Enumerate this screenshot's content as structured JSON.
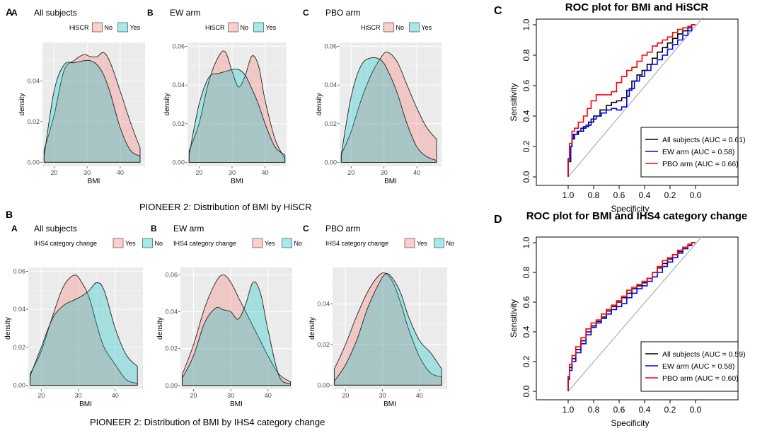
{
  "figure": {
    "section_labels": {
      "a": "A",
      "b": "B"
    },
    "captions": {
      "top": "PIONEER 2: Distribution of BMI by HiSCR",
      "bottom": "PIONEER 2: Distribution of BMI by IHS4 category change"
    }
  },
  "colors": {
    "pink": "#f8766d",
    "teal": "#00bfc4",
    "panel_bg": "#ebebeb",
    "roc_black": "#000000",
    "roc_blue": "#0000ff",
    "roc_red": "#ff0000",
    "diag": "#a0a0a0"
  },
  "chart_data": [
    {
      "id": "A-A",
      "type": "area",
      "panel_letter": "A",
      "title": "All subjects",
      "legend_title": "HiSCR",
      "legend": [
        "No",
        "Yes"
      ],
      "xlabel": "BMI",
      "ylabel": "density",
      "xlim": [
        16.5,
        47.5
      ],
      "ylim": [
        -0.002,
        0.059
      ],
      "xticks": [
        20,
        30,
        40
      ],
      "yticks": [
        0.0,
        0.02,
        0.04
      ],
      "ytick_labels": [
        "0.00",
        "0.02",
        "0.04"
      ],
      "x": [
        17,
        20,
        23,
        26,
        29,
        31,
        33,
        35,
        37,
        40,
        43,
        46
      ],
      "series": [
        {
          "name": "No",
          "values": [
            0.006,
            0.023,
            0.045,
            0.05,
            0.053,
            0.052,
            0.052,
            0.054,
            0.049,
            0.035,
            0.02,
            0.007
          ]
        },
        {
          "name": "Yes",
          "values": [
            0.003,
            0.035,
            0.048,
            0.049,
            0.05,
            0.05,
            0.048,
            0.043,
            0.034,
            0.017,
            0.006,
            0.003
          ]
        }
      ]
    },
    {
      "id": "A-B",
      "type": "area",
      "panel_letter": "B",
      "title": "EW arm",
      "legend_title": "HiSCR",
      "legend": [
        "No",
        "Yes"
      ],
      "xlabel": "BMI",
      "ylabel": "density",
      "xlim": [
        16.5,
        46.5
      ],
      "ylim": [
        -0.002,
        0.062
      ],
      "xticks": [
        20,
        30,
        40
      ],
      "yticks": [
        0.0,
        0.02,
        0.04,
        0.06
      ],
      "ytick_labels": [
        "0.00",
        "0.02",
        "0.04",
        "0.06"
      ],
      "x": [
        17,
        20,
        23,
        26,
        28,
        30,
        32,
        34,
        36,
        38,
        40,
        43,
        46
      ],
      "series": [
        {
          "name": "No",
          "values": [
            0.006,
            0.02,
            0.042,
            0.055,
            0.057,
            0.047,
            0.039,
            0.045,
            0.055,
            0.05,
            0.032,
            0.012,
            0.002
          ]
        },
        {
          "name": "Yes",
          "values": [
            0.004,
            0.03,
            0.044,
            0.046,
            0.047,
            0.048,
            0.048,
            0.045,
            0.038,
            0.03,
            0.02,
            0.008,
            0.004
          ]
        }
      ]
    },
    {
      "id": "A-C",
      "type": "area",
      "panel_letter": "C",
      "title": "PBO arm",
      "legend_title": "HiSCR",
      "legend": [
        "No",
        "Yes"
      ],
      "xlabel": "BMI",
      "ylabel": "density",
      "xlim": [
        16.5,
        47.5
      ],
      "ylim": [
        -0.002,
        0.062
      ],
      "xticks": [
        20,
        30,
        40
      ],
      "yticks": [
        0.0,
        0.02,
        0.04,
        0.06
      ],
      "ytick_labels": [
        "0.00",
        "0.02",
        "0.04",
        "0.06"
      ],
      "x": [
        17,
        20,
        23,
        26,
        29,
        31,
        34,
        37,
        40,
        43,
        46
      ],
      "series": [
        {
          "name": "No",
          "values": [
            0.004,
            0.016,
            0.032,
            0.045,
            0.054,
            0.057,
            0.052,
            0.04,
            0.028,
            0.018,
            0.012
          ]
        },
        {
          "name": "Yes",
          "values": [
            0.004,
            0.034,
            0.05,
            0.054,
            0.053,
            0.048,
            0.036,
            0.02,
            0.008,
            0.003,
            0.001
          ]
        }
      ]
    },
    {
      "id": "B-A",
      "type": "area",
      "panel_letter": "A",
      "title": "All subjects",
      "legend_title": "IHS4 category change",
      "legend": [
        "Yes",
        "No"
      ],
      "xlabel": "BMI",
      "ylabel": "density",
      "xlim": [
        16.5,
        47.5
      ],
      "ylim": [
        -0.002,
        0.062
      ],
      "xticks": [
        20,
        30,
        40
      ],
      "yticks": [
        0.0,
        0.02,
        0.04,
        0.06
      ],
      "ytick_labels": [
        "0.00",
        "0.02",
        "0.04",
        "0.06"
      ],
      "x": [
        17,
        20,
        23,
        26,
        29,
        31,
        33,
        35,
        37,
        40,
        43,
        46
      ],
      "series": [
        {
          "name": "Yes",
          "values": [
            0.006,
            0.018,
            0.036,
            0.052,
            0.058,
            0.054,
            0.046,
            0.032,
            0.02,
            0.011,
            0.003,
            0.001
          ]
        },
        {
          "name": "No",
          "values": [
            0.005,
            0.02,
            0.035,
            0.042,
            0.045,
            0.047,
            0.05,
            0.054,
            0.05,
            0.03,
            0.016,
            0.01
          ]
        }
      ]
    },
    {
      "id": "B-B",
      "type": "area",
      "panel_letter": "B",
      "title": "EW arm",
      "legend_title": "IHS4 category change",
      "legend": [
        "Yes",
        "No"
      ],
      "xlabel": "BMI",
      "ylabel": "density",
      "xlim": [
        16.5,
        46.5
      ],
      "ylim": [
        -0.002,
        0.064
      ],
      "xticks": [
        20,
        30,
        40
      ],
      "yticks": [
        0.0,
        0.02,
        0.04,
        0.06
      ],
      "ytick_labels": [
        "0.00",
        "0.02",
        "0.04",
        "0.06"
      ],
      "x": [
        17,
        20,
        23,
        26,
        28,
        30,
        32,
        34,
        36,
        38,
        40,
        43,
        46
      ],
      "series": [
        {
          "name": "Yes",
          "values": [
            0.006,
            0.022,
            0.042,
            0.056,
            0.06,
            0.056,
            0.048,
            0.04,
            0.032,
            0.024,
            0.016,
            0.006,
            0.002
          ]
        },
        {
          "name": "No",
          "values": [
            0.004,
            0.016,
            0.034,
            0.042,
            0.041,
            0.04,
            0.036,
            0.044,
            0.056,
            0.05,
            0.03,
            0.005,
            0.001
          ]
        }
      ]
    },
    {
      "id": "B-C",
      "type": "area",
      "panel_letter": "C",
      "title": "PBO arm",
      "legend_title": "IHS4 category change",
      "legend": [
        "Yes",
        "No"
      ],
      "xlabel": "BMI",
      "ylabel": "density",
      "xlim": [
        16.5,
        47.5
      ],
      "ylim": [
        -0.002,
        0.058
      ],
      "xticks": [
        20,
        30,
        40
      ],
      "yticks": [
        0.0,
        0.02,
        0.04
      ],
      "ytick_labels": [
        "0.00",
        "0.02",
        "0.04"
      ],
      "x": [
        17,
        20,
        23,
        26,
        29,
        31,
        33,
        35,
        37,
        40,
        43,
        46
      ],
      "series": [
        {
          "name": "Yes",
          "values": [
            0.008,
            0.02,
            0.034,
            0.046,
            0.054,
            0.055,
            0.05,
            0.04,
            0.028,
            0.014,
            0.006,
            0.004
          ]
        },
        {
          "name": "No",
          "values": [
            0.002,
            0.01,
            0.022,
            0.038,
            0.05,
            0.055,
            0.052,
            0.045,
            0.034,
            0.022,
            0.016,
            0.008
          ]
        }
      ]
    },
    {
      "id": "ROC-C",
      "type": "line",
      "panel_letter": "C",
      "title": "ROC plot for BMI and HiSCR",
      "xlabel": "Specificity",
      "ylabel": "Sensitivity",
      "xlim": [
        1.0,
        0.0
      ],
      "ylim": [
        0.0,
        1.0
      ],
      "xticks": [
        1.0,
        0.8,
        0.6,
        0.4,
        0.2,
        0.0
      ],
      "xtick_labels": [
        "1.0",
        "0.8",
        "0.6",
        "0.4",
        "0.2",
        "0.0"
      ],
      "yticks": [
        0.0,
        0.2,
        0.4,
        0.6,
        0.8,
        1.0
      ],
      "ytick_labels": [
        "0.0",
        "0.2",
        "0.4",
        "0.6",
        "0.8",
        "1.0"
      ],
      "series": [
        {
          "name": "All subjects (AUC = 0.61)",
          "color": "#000000",
          "x": [
            1.0,
            0.98,
            0.97,
            0.95,
            0.92,
            0.88,
            0.84,
            0.8,
            0.75,
            0.7,
            0.66,
            0.62,
            0.58,
            0.54,
            0.5,
            0.46,
            0.42,
            0.38,
            0.34,
            0.3,
            0.26,
            0.22,
            0.18,
            0.14,
            0.1,
            0.06,
            0.03,
            0.0
          ],
          "y": [
            0.0,
            0.1,
            0.2,
            0.25,
            0.28,
            0.3,
            0.33,
            0.36,
            0.4,
            0.44,
            0.47,
            0.49,
            0.5,
            0.52,
            0.57,
            0.63,
            0.67,
            0.7,
            0.74,
            0.78,
            0.82,
            0.85,
            0.88,
            0.91,
            0.94,
            0.96,
            0.98,
            1.0
          ]
        },
        {
          "name": "EW arm (AUC = 0.58)",
          "color": "#0000ff",
          "x": [
            1.0,
            0.98,
            0.97,
            0.96,
            0.93,
            0.9,
            0.86,
            0.82,
            0.78,
            0.74,
            0.7,
            0.66,
            0.62,
            0.58,
            0.54,
            0.52,
            0.48,
            0.44,
            0.4,
            0.35,
            0.3,
            0.26,
            0.22,
            0.18,
            0.14,
            0.1,
            0.06,
            0.03,
            0.0
          ],
          "y": [
            0.0,
            0.12,
            0.2,
            0.25,
            0.28,
            0.3,
            0.32,
            0.34,
            0.38,
            0.4,
            0.42,
            0.44,
            0.45,
            0.44,
            0.46,
            0.53,
            0.58,
            0.63,
            0.66,
            0.7,
            0.74,
            0.77,
            0.8,
            0.84,
            0.87,
            0.9,
            0.93,
            0.96,
            1.0
          ]
        },
        {
          "name": "PBO arm (AUC = 0.66)",
          "color": "#ff0000",
          "x": [
            1.0,
            0.99,
            0.97,
            0.95,
            0.92,
            0.88,
            0.85,
            0.82,
            0.78,
            0.75,
            0.72,
            0.7,
            0.66,
            0.62,
            0.58,
            0.54,
            0.5,
            0.46,
            0.42,
            0.38,
            0.34,
            0.3,
            0.26,
            0.22,
            0.18,
            0.14,
            0.1,
            0.06,
            0.03,
            0.0
          ],
          "y": [
            0.0,
            0.1,
            0.22,
            0.3,
            0.32,
            0.36,
            0.4,
            0.45,
            0.5,
            0.54,
            0.54,
            0.54,
            0.54,
            0.56,
            0.62,
            0.66,
            0.7,
            0.72,
            0.76,
            0.8,
            0.82,
            0.86,
            0.88,
            0.9,
            0.92,
            0.95,
            0.97,
            0.98,
            0.99,
            1.0
          ]
        }
      ],
      "legend_position": "bottom-right"
    },
    {
      "id": "ROC-D",
      "type": "line",
      "panel_letter": "D",
      "title": "ROC plot for BMI and IHS4 category change",
      "xlabel": "Specificity",
      "ylabel": "Sensitivity",
      "xlim": [
        1.0,
        0.0
      ],
      "ylim": [
        0.0,
        1.0
      ],
      "xticks": [
        1.0,
        0.8,
        0.6,
        0.4,
        0.2,
        0.0
      ],
      "xtick_labels": [
        "1.0",
        "0.8",
        "0.6",
        "0.4",
        "0.2",
        "0.0"
      ],
      "yticks": [
        0.0,
        0.2,
        0.4,
        0.6,
        0.8,
        1.0
      ],
      "ytick_labels": [
        "0.0",
        "0.2",
        "0.4",
        "0.6",
        "0.8",
        "1.0"
      ],
      "series": [
        {
          "name": "All subjects (AUC = 0.59)",
          "color": "#000000",
          "x": [
            1.0,
            0.99,
            0.97,
            0.94,
            0.9,
            0.86,
            0.82,
            0.78,
            0.74,
            0.7,
            0.66,
            0.62,
            0.58,
            0.54,
            0.5,
            0.46,
            0.42,
            0.38,
            0.34,
            0.3,
            0.26,
            0.22,
            0.18,
            0.14,
            0.1,
            0.06,
            0.03,
            0.0
          ],
          "y": [
            0.0,
            0.1,
            0.16,
            0.22,
            0.28,
            0.34,
            0.4,
            0.44,
            0.47,
            0.5,
            0.54,
            0.57,
            0.6,
            0.63,
            0.66,
            0.69,
            0.71,
            0.73,
            0.76,
            0.8,
            0.83,
            0.86,
            0.89,
            0.92,
            0.94,
            0.96,
            0.98,
            1.0
          ]
        },
        {
          "name": "EW arm (AUC = 0.58)",
          "color": "#0000ff",
          "x": [
            1.0,
            0.99,
            0.97,
            0.94,
            0.9,
            0.86,
            0.82,
            0.78,
            0.74,
            0.7,
            0.66,
            0.62,
            0.58,
            0.54,
            0.5,
            0.46,
            0.42,
            0.38,
            0.34,
            0.3,
            0.26,
            0.22,
            0.18,
            0.14,
            0.1,
            0.06,
            0.03,
            0.0
          ],
          "y": [
            0.0,
            0.08,
            0.14,
            0.2,
            0.26,
            0.32,
            0.38,
            0.43,
            0.46,
            0.49,
            0.52,
            0.55,
            0.57,
            0.59,
            0.63,
            0.66,
            0.69,
            0.71,
            0.74,
            0.77,
            0.8,
            0.84,
            0.87,
            0.9,
            0.93,
            0.96,
            0.98,
            1.0
          ]
        },
        {
          "name": "PBO arm (AUC = 0.60)",
          "color": "#ff0000",
          "x": [
            1.0,
            0.99,
            0.97,
            0.94,
            0.9,
            0.86,
            0.82,
            0.78,
            0.74,
            0.7,
            0.66,
            0.62,
            0.58,
            0.54,
            0.5,
            0.46,
            0.42,
            0.38,
            0.34,
            0.3,
            0.26,
            0.22,
            0.18,
            0.14,
            0.1,
            0.06,
            0.03,
            0.0
          ],
          "y": [
            0.0,
            0.1,
            0.18,
            0.24,
            0.3,
            0.36,
            0.42,
            0.46,
            0.48,
            0.52,
            0.55,
            0.58,
            0.61,
            0.64,
            0.68,
            0.7,
            0.72,
            0.74,
            0.76,
            0.8,
            0.84,
            0.88,
            0.9,
            0.92,
            0.95,
            0.97,
            0.99,
            1.0
          ]
        }
      ],
      "legend_position": "bottom-right"
    }
  ]
}
